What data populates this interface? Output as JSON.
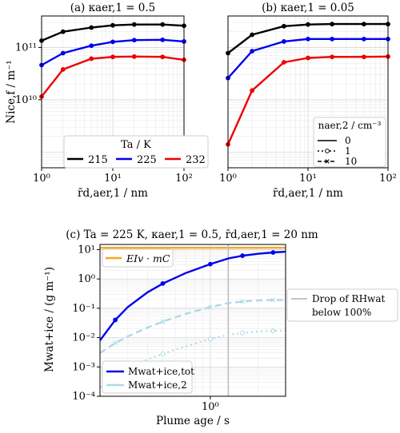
{
  "chart_data": [
    {
      "type": "line",
      "title": "(a) κaer,1 = 0.5",
      "xlabel": "r̄d,aer,1 / nm",
      "ylabel": "Nice,f / m⁻¹",
      "xscale": "log",
      "yscale": "log",
      "xlim": [
        1,
        100
      ],
      "ylim": [
        500000000.0,
        400000000000.0
      ],
      "xticks": [
        {
          "v": 1,
          "label": "10⁰"
        },
        {
          "v": 10,
          "label": "10¹"
        },
        {
          "v": 100,
          "label": "10²"
        }
      ],
      "yticks": [
        {
          "v": 10000000000.0,
          "label": "10¹⁰"
        },
        {
          "v": 100000000000.0,
          "label": "10¹¹"
        }
      ],
      "grid": true,
      "legend": {
        "position": "bottom-center",
        "title": "Ta / K",
        "entries": [
          {
            "label": "215",
            "color": "#000000"
          },
          {
            "label": "225",
            "color": "#0000ee"
          },
          {
            "label": "232",
            "color": "#ee0000"
          }
        ]
      },
      "x": [
        1,
        2,
        5,
        10,
        20,
        50,
        100
      ],
      "series": [
        {
          "name": "215",
          "color": "#000000",
          "values": [
            135000000000.0,
            200000000000.0,
            240000000000.0,
            265000000000.0,
            275000000000.0,
            275000000000.0,
            260000000000.0
          ]
        },
        {
          "name": "225",
          "color": "#0000ee",
          "values": [
            46000000000.0,
            78000000000.0,
            108000000000.0,
            128000000000.0,
            138000000000.0,
            140000000000.0,
            130000000000.0
          ]
        },
        {
          "name": "232",
          "color": "#ee0000",
          "values": [
            11500000000.0,
            38000000000.0,
            61000000000.0,
            66000000000.0,
            67000000000.0,
            66000000000.0,
            58000000000.0
          ]
        }
      ]
    },
    {
      "type": "line",
      "title": "(b) κaer,1 = 0.05",
      "xlabel": "r̄d,aer,1 / nm",
      "ylabel": "",
      "xscale": "log",
      "yscale": "log",
      "xlim": [
        1,
        100
      ],
      "ylim": [
        500000000.0,
        400000000000.0
      ],
      "xticks": [
        {
          "v": 1,
          "label": "10⁰"
        },
        {
          "v": 10,
          "label": "10¹"
        },
        {
          "v": 100,
          "label": "10²"
        }
      ],
      "yticks": [],
      "grid": true,
      "legend": {
        "position": "lower-right",
        "title": "naer,2 / cm⁻³",
        "entries": [
          {
            "label": "0",
            "style": "solid"
          },
          {
            "label": "1",
            "style": "dotted-open-circle"
          },
          {
            "label": "10",
            "style": "dashed-x"
          }
        ]
      },
      "x": [
        1,
        2,
        5,
        10,
        20,
        50,
        100
      ],
      "series": [
        {
          "name": "215",
          "color": "#000000",
          "values": [
            78000000000.0,
            175000000000.0,
            255000000000.0,
            275000000000.0,
            280000000000.0,
            280000000000.0,
            280000000000.0
          ]
        },
        {
          "name": "225",
          "color": "#0000ee",
          "values": [
            26000000000.0,
            85000000000.0,
            130000000000.0,
            145000000000.0,
            145000000000.0,
            145000000000.0,
            145000000000.0
          ]
        },
        {
          "name": "232",
          "color": "#ee0000",
          "values": [
            1400000000.0,
            15000000000.0,
            52000000000.0,
            63000000000.0,
            66000000000.0,
            66000000000.0,
            67000000000.0
          ]
        }
      ]
    },
    {
      "type": "line",
      "title": "(c) Ta = 225 K, κaer,1 = 0.5, r̄d,aer,1 = 20 nm",
      "xlabel": "Plume age / s",
      "ylabel": "Mwat+ice / (g m⁻¹)",
      "xscale": "log",
      "yscale": "log",
      "xlim": [
        0.2,
        3.0
      ],
      "ylim": [
        0.0001,
        15
      ],
      "xticks": [
        {
          "v": 1,
          "label": "10⁰"
        }
      ],
      "yticks": [
        {
          "v": 0.0001,
          "label": "10⁻⁴"
        },
        {
          "v": 0.001,
          "label": "10⁻³"
        },
        {
          "v": 0.01,
          "label": "10⁻²"
        },
        {
          "v": 0.1,
          "label": "10⁻¹"
        },
        {
          "v": 1,
          "label": "10⁰"
        },
        {
          "v": 10,
          "label": "10¹"
        }
      ],
      "grid": true,
      "ei_label": "EIv · mC",
      "ei_value": 11.5,
      "vline": {
        "x": 1.3,
        "label_line1": "Drop of RHwat",
        "label_line2": "below 100%"
      },
      "legend": {
        "position": "lower-left",
        "entries": [
          {
            "label": "Mwat+ice,tot",
            "color": "#0000ee"
          },
          {
            "label": "Mwat+ice,2",
            "color": "#add8e6"
          }
        ]
      },
      "series": [
        {
          "name": "Mwat+ice,tot, 0",
          "color": "#0000ee",
          "x": [
            0.2,
            0.25,
            0.3,
            0.4,
            0.5,
            0.7,
            1.0,
            1.3,
            1.6,
            2.0,
            2.5,
            3.0
          ],
          "values": [
            0.008,
            0.04,
            0.11,
            0.35,
            0.7,
            1.6,
            3.2,
            5.0,
            6.2,
            7.2,
            8.0,
            8.5
          ]
        },
        {
          "name": "Mwat+ice,2, 10",
          "color": "#add8e6",
          "x": [
            0.2,
            0.25,
            0.3,
            0.4,
            0.5,
            0.7,
            1.0,
            1.3,
            1.6,
            2.0,
            2.5,
            3.0
          ],
          "values": [
            0.003,
            0.0065,
            0.011,
            0.022,
            0.035,
            0.065,
            0.11,
            0.15,
            0.17,
            0.185,
            0.19,
            0.19
          ]
        },
        {
          "name": "Mwat+ice,2, 1",
          "color": "#add8e6",
          "x": [
            0.2,
            0.25,
            0.3,
            0.4,
            0.5,
            0.7,
            1.0,
            1.3,
            1.6,
            2.0,
            2.5,
            3.0
          ],
          "values": [
            0.0002,
            0.0005,
            0.0009,
            0.0018,
            0.0028,
            0.005,
            0.009,
            0.0125,
            0.0145,
            0.016,
            0.017,
            0.0175
          ]
        }
      ]
    }
  ]
}
